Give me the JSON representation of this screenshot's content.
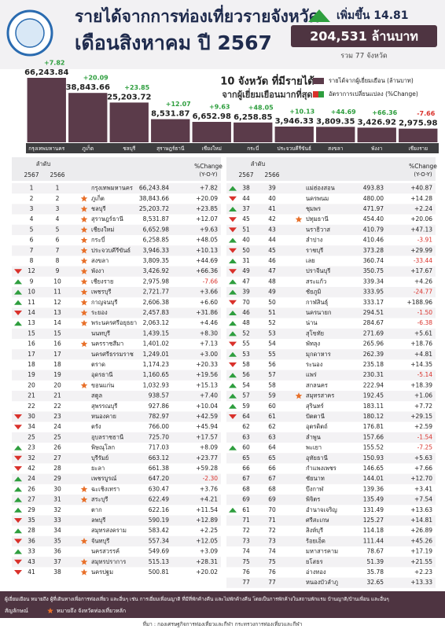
{
  "header": {
    "title": "รายได้จากการท่องเที่ยวรายจังหวัด",
    "subtitle": "เดือนสิงหาคม ปี 2567",
    "change_label": "เพิ่มขึ้น 14.81",
    "total": "204,531 ล้านบาท",
    "total_note": "รวม 77 จังหวัด"
  },
  "chart_data": {
    "type": "bar",
    "title": "10 จังหวัด ที่มีรายได้",
    "subtitle": "จากผู้เยี่ยมเยือนมากที่สุด",
    "categories": [
      "กรุงเทพมหานคร",
      "ภูเก็ต",
      "ชลบุรี",
      "สุราษฎร์ธานี",
      "เชียงใหม่",
      "กระบี่",
      "ประจวบคีรีขันธ์",
      "สงขลา",
      "พังงา",
      "เชียงราย"
    ],
    "series": [
      {
        "name": "รายได้จากผู้เยี่ยมเยือน (ล้านบาท)",
        "color": "#5b3b4a",
        "values": [
          66243.84,
          38843.66,
          25203.72,
          8531.87,
          6652.98,
          6258.85,
          3946.33,
          3809.35,
          3426.92,
          2975.98
        ],
        "value_labels": [
          "66,243.84",
          "38,843.66",
          "25,203.72",
          "8,531.87",
          "6,652.98",
          "6,258.85",
          "3,946.33",
          "3,809.35",
          "3,426.92",
          "2,975.98"
        ]
      },
      {
        "name": "อัตราการเปลี่ยนแปลง (%Change)",
        "color": "#2e9e3e",
        "color_down": "#d9312b",
        "values": [
          7.82,
          20.09,
          23.85,
          12.07,
          9.63,
          48.05,
          10.13,
          44.69,
          66.36,
          -7.66
        ],
        "value_labels": [
          "+7.82",
          "+20.09",
          "+23.85",
          "+12.07",
          "+9.63",
          "+48.05",
          "+10.13",
          "+44.69",
          "+66.36",
          "-7.66"
        ]
      }
    ]
  },
  "table": {
    "header": {
      "rank": "ลำดับ",
      "year_a": "2567",
      "year_b": "2566",
      "change": "%Change",
      "change_sub": "(Y-O-Y)"
    },
    "up_color": "#2e9e3e",
    "down_color": "#d9312b",
    "star_color": "#e8702a",
    "rows": [
      [
        1,
        1,
        "กรุงเทพมหานคร",
        "66,243.84",
        "+7.82",
        false
      ],
      [
        2,
        2,
        "ภูเก็ต",
        "38,843.66",
        "+20.09",
        true
      ],
      [
        3,
        3,
        "ชลบุรี",
        "25,203.72",
        "+23.85",
        true
      ],
      [
        4,
        4,
        "สุราษฎร์ธานี",
        "8,531.87",
        "+12.07",
        true
      ],
      [
        5,
        5,
        "เชียงใหม่",
        "6,652.98",
        "+9.63",
        true
      ],
      [
        6,
        6,
        "กระบี่",
        "6,258.85",
        "+48.05",
        true
      ],
      [
        7,
        7,
        "ประจวบคีรีขันธ์",
        "3,946.33",
        "+10.13",
        true
      ],
      [
        8,
        8,
        "สงขลา",
        "3,809.35",
        "+44.69",
        true
      ],
      [
        12,
        9,
        "พังงา",
        "3,426.92",
        "+66.36",
        true
      ],
      [
        9,
        10,
        "เชียงราย",
        "2,975.98",
        "-7.66",
        true
      ],
      [
        10,
        11,
        "เพชรบุรี",
        "2,721.77",
        "+3.66",
        true
      ],
      [
        11,
        12,
        "กาญจนบุรี",
        "2,606.38",
        "+6.60",
        true
      ],
      [
        14,
        13,
        "ระยอง",
        "2,457.83",
        "+31.86",
        true
      ],
      [
        13,
        14,
        "พระนครศรีอยุธยา",
        "2,063.12",
        "+4.46",
        true
      ],
      [
        15,
        15,
        "นนทบุรี",
        "1,439.15",
        "+8.30",
        false
      ],
      [
        16,
        16,
        "นครราชสีมา",
        "1,401.02",
        "+7.13",
        true
      ],
      [
        17,
        17,
        "นครศรีธรรมราช",
        "1,249.01",
        "+3.00",
        false
      ],
      [
        18,
        18,
        "ตราด",
        "1,174.23",
        "+20.33",
        false
      ],
      [
        19,
        19,
        "อุดรธานี",
        "1,160.65",
        "+19.56",
        false
      ],
      [
        20,
        20,
        "ขอนแก่น",
        "1,032.93",
        "+15.13",
        true
      ],
      [
        21,
        21,
        "สตูล",
        "938.57",
        "+7.40",
        false
      ],
      [
        22,
        22,
        "สุพรรณบุรี",
        "927.86",
        "+10.04",
        false
      ],
      [
        30,
        23,
        "หนองคาย",
        "782.97",
        "+42.59",
        false
      ],
      [
        34,
        24,
        "ตรัง",
        "766.00",
        "+45.94",
        false
      ],
      [
        25,
        25,
        "อุบลราชธานี",
        "725.70",
        "+17.57",
        false
      ],
      [
        23,
        26,
        "พิษณุโลก",
        "717.03",
        "+8.09",
        false
      ],
      [
        32,
        27,
        "บุรีรัมย์",
        "663.12",
        "+23.77",
        false
      ],
      [
        42,
        28,
        "ยะลา",
        "661.38",
        "+59.28",
        false
      ],
      [
        24,
        29,
        "เพชรบูรณ์",
        "647.20",
        "-2.30",
        false
      ],
      [
        26,
        30,
        "ฉะเชิงเทรา",
        "630.47",
        "+3.76",
        true
      ],
      [
        27,
        31,
        "สระบุรี",
        "622.49",
        "+4.21",
        true
      ],
      [
        29,
        32,
        "ตาก",
        "622.16",
        "+11.54",
        false
      ],
      [
        35,
        33,
        "ลพบุรี",
        "590.19",
        "+12.89",
        false
      ],
      [
        28,
        34,
        "สมุทรสงคราม",
        "583.42",
        "+2.25",
        false
      ],
      [
        36,
        35,
        "จันทบุรี",
        "557.34",
        "+12.05",
        true
      ],
      [
        33,
        36,
        "นครสวรรค์",
        "549.69",
        "+3.09",
        false
      ],
      [
        43,
        37,
        "สมุทรปราการ",
        "515.13",
        "+28.31",
        true
      ],
      [
        41,
        38,
        "นครปฐม",
        "500.81",
        "+20.02",
        true
      ],
      [
        38,
        39,
        "แม่ฮ่องสอน",
        "493.83",
        "+40.87",
        false
      ],
      [
        44,
        40,
        "นครพนม",
        "480.00",
        "+14.28",
        false
      ],
      [
        37,
        41,
        "ชุมพร",
        "471.97",
        "+2.24",
        false
      ],
      [
        45,
        42,
        "ปทุมธานี",
        "454.40",
        "+20.06",
        true
      ],
      [
        51,
        43,
        "นราธิวาส",
        "410.79",
        "+47.13",
        false
      ],
      [
        40,
        44,
        "ลำปาง",
        "410.46",
        "-3.91",
        false
      ],
      [
        50,
        45,
        "ราชบุรี",
        "373.28",
        "+29.99",
        false
      ],
      [
        31,
        46,
        "เลย",
        "360.74",
        "-33.44",
        false
      ],
      [
        49,
        47,
        "ปราจีนบุรี",
        "350.75",
        "+17.67",
        false
      ],
      [
        47,
        48,
        "สระแก้ว",
        "339.34",
        "+4.26",
        false
      ],
      [
        39,
        49,
        "ชัยภูมิ",
        "333.95",
        "-24.77",
        false
      ],
      [
        70,
        50,
        "กาฬสินธุ์",
        "333.17",
        "+188.96",
        false
      ],
      [
        46,
        51,
        "นครนายก",
        "294.51",
        "-1.50",
        false
      ],
      [
        48,
        52,
        "น่าน",
        "284.67",
        "-6.38",
        false
      ],
      [
        52,
        53,
        "สุโขทัย",
        "271.69",
        "+5.61",
        false
      ],
      [
        55,
        54,
        "พัทลุง",
        "265.96",
        "+18.76",
        false
      ],
      [
        53,
        55,
        "มุกดาหาร",
        "262.39",
        "+4.81",
        false
      ],
      [
        58,
        56,
        "ระนอง",
        "235.18",
        "+14.35",
        false
      ],
      [
        56,
        57,
        "แพร่",
        "230.31",
        "-5.14",
        false
      ],
      [
        54,
        58,
        "สกลนคร",
        "222.94",
        "+18.39",
        false
      ],
      [
        57,
        59,
        "สมุทรสาคร",
        "192.45",
        "+1.06",
        true
      ],
      [
        59,
        60,
        "สุรินทร์",
        "183.11",
        "+7.72",
        false
      ],
      [
        64,
        61,
        "ปัตตานี",
        "180.12",
        "+29.15",
        false
      ],
      [
        62,
        62,
        "อุตรดิตถ์",
        "176.81",
        "+2.59",
        false
      ],
      [
        63,
        63,
        "ลำพูน",
        "157.66",
        "-1.54",
        false
      ],
      [
        60,
        64,
        "พะเยา",
        "155.52",
        "-7.25",
        false
      ],
      [
        65,
        65,
        "อุทัยธานี",
        "150.93",
        "+5.63",
        false
      ],
      [
        66,
        66,
        "กำแพงเพชร",
        "146.65",
        "+7.66",
        false
      ],
      [
        67,
        67,
        "ชัยนาท",
        "144.01",
        "+12.70",
        false
      ],
      [
        68,
        68,
        "บึงกาฬ",
        "139.36",
        "+3.41",
        false
      ],
      [
        69,
        69,
        "พิจิตร",
        "135.49",
        "+7.54",
        false
      ],
      [
        61,
        70,
        "อำนาจเจริญ",
        "131.49",
        "+13.63",
        false
      ],
      [
        71,
        71,
        "ศรีสะเกษ",
        "125.27",
        "+14.81",
        false
      ],
      [
        72,
        72,
        "สิงห์บุรี",
        "114.18",
        "+26.89",
        false
      ],
      [
        73,
        73,
        "ร้อยเอ็ด",
        "111.44",
        "+45.26",
        false
      ],
      [
        74,
        74,
        "มหาสารคาม",
        "78.67",
        "+17.19",
        false
      ],
      [
        75,
        75,
        "ยโสธร",
        "51.39",
        "+21.55",
        false
      ],
      [
        76,
        76,
        "อ่างทอง",
        "35.78",
        "+2.23",
        false
      ],
      [
        77,
        77,
        "หนองบัวลำภู",
        "32.65",
        "+13.33",
        false
      ]
    ]
  },
  "footer": {
    "note_line1": "ผู้เยี่ยมเยือน หมายถึง ผู้ที่เดินทางเพื่อการท่องเที่ยว และอื่นๆ เช่น การเยี่ยมเพื่อนญาติ ที่มีที่พักค้างคืน และไม่พักค้างคืน โดยเป็นการพักค้างในสถานพักแรม บ้านญาติ/บ้านเพื่อน และอื่นๆ",
    "legend_prefix": "สัญลักษณ์",
    "legend_text": "หมายถึง จังหวัดท่องเที่ยวหลัก",
    "source": "ที่มา : กองเศรษฐกิจการท่องเที่ยวและกีฬา กระทรวงการท่องเที่ยวและกีฬา"
  }
}
